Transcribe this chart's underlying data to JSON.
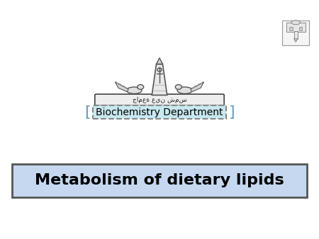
{
  "background_color": "#ffffff",
  "title_text": "Metabolism of dietary lipids",
  "title_box_color": "#c5d8f0",
  "title_box_edge_color": "#555555",
  "title_text_color": "#000000",
  "title_fontsize": 16,
  "dept_text": "Biochemistry Department",
  "dept_box_color": "#c8e8f0",
  "dept_box_edge_color": "#888888",
  "dept_fontsize": 10,
  "fig_width": 4.5,
  "fig_height": 3.38,
  "dpi": 100
}
